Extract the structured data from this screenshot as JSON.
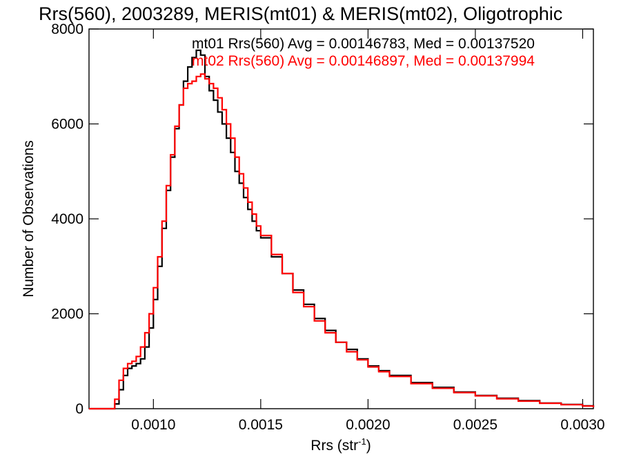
{
  "chart_data": {
    "type": "line",
    "title": "Rrs(560), 2003289, MERIS(mt01) & MERIS(mt02), Oligotrophic",
    "xlabel": "Rrs (str",
    "xlabel_sup": "-1",
    "xlabel_close": ")",
    "ylabel": "Number of Observations",
    "xlim": [
      0.0007,
      0.00305
    ],
    "ylim": [
      0,
      8000
    ],
    "xticks": [
      0.001,
      0.0015,
      0.002,
      0.0025,
      0.003
    ],
    "xtick_labels": [
      "0.0010",
      "0.0015",
      "0.0020",
      "0.0025",
      "0.0030"
    ],
    "yticks": [
      0,
      2000,
      4000,
      6000,
      8000
    ],
    "ytick_labels": [
      "0",
      "2000",
      "4000",
      "6000",
      "8000"
    ],
    "grid": false,
    "colors": {
      "mt01": "#000000",
      "mt02": "#ff0000",
      "axes": "#000000"
    },
    "annotations": [
      {
        "id": "mt01",
        "text": "mt01 Rrs(560) Avg = 0.00146783, Med = 0.00137520",
        "color": "#000000"
      },
      {
        "id": "mt02",
        "text": "mt02 Rrs(560) Avg = 0.00146897, Med = 0.00137994",
        "color": "#ff0000"
      }
    ],
    "series": [
      {
        "id": "mt01",
        "color": "#000000",
        "style": "step",
        "x": [
          0.0007,
          0.0008,
          0.00082,
          0.00084,
          0.00086,
          0.00088,
          0.0009,
          0.00092,
          0.00094,
          0.00096,
          0.00098,
          0.001,
          0.00102,
          0.00104,
          0.00106,
          0.00108,
          0.0011,
          0.00112,
          0.00114,
          0.00116,
          0.00118,
          0.0012,
          0.00122,
          0.00124,
          0.00126,
          0.00128,
          0.0013,
          0.00132,
          0.00134,
          0.00136,
          0.00138,
          0.0014,
          0.00142,
          0.00144,
          0.00146,
          0.00148,
          0.0015,
          0.00155,
          0.0016,
          0.00165,
          0.0017,
          0.00175,
          0.0018,
          0.00185,
          0.0019,
          0.00195,
          0.002,
          0.00205,
          0.0021,
          0.0022,
          0.0023,
          0.0024,
          0.0025,
          0.0026,
          0.0027,
          0.0028,
          0.0029,
          0.003,
          0.00305
        ],
        "y": [
          0,
          0,
          100,
          400,
          700,
          850,
          900,
          950,
          1050,
          1300,
          1700,
          2300,
          3000,
          3800,
          4600,
          5300,
          5900,
          6400,
          6900,
          7200,
          7400,
          7550,
          7450,
          7000,
          6700,
          6500,
          6250,
          6000,
          5700,
          5400,
          5000,
          4750,
          4450,
          4200,
          3950,
          3750,
          3600,
          3200,
          2850,
          2500,
          2200,
          1900,
          1650,
          1400,
          1250,
          1050,
          900,
          800,
          700,
          550,
          450,
          350,
          280,
          220,
          170,
          120,
          90,
          60,
          30
        ]
      },
      {
        "id": "mt02",
        "color": "#ff0000",
        "style": "step",
        "x": [
          0.0007,
          0.0008,
          0.00082,
          0.00084,
          0.00086,
          0.00088,
          0.0009,
          0.00092,
          0.00094,
          0.00096,
          0.00098,
          0.001,
          0.00102,
          0.00104,
          0.00106,
          0.00108,
          0.0011,
          0.00112,
          0.00114,
          0.00116,
          0.00118,
          0.0012,
          0.00122,
          0.00124,
          0.00126,
          0.00128,
          0.0013,
          0.00132,
          0.00134,
          0.00136,
          0.00138,
          0.0014,
          0.00142,
          0.00144,
          0.00146,
          0.00148,
          0.0015,
          0.00155,
          0.0016,
          0.00165,
          0.0017,
          0.00175,
          0.0018,
          0.00185,
          0.0019,
          0.00195,
          0.002,
          0.00205,
          0.0021,
          0.0022,
          0.0023,
          0.0024,
          0.0025,
          0.0026,
          0.0027,
          0.0028,
          0.0029,
          0.003,
          0.00305
        ],
        "y": [
          0,
          0,
          200,
          600,
          850,
          950,
          1000,
          1100,
          1300,
          1600,
          2000,
          2550,
          3200,
          3950,
          4700,
          5350,
          5950,
          6400,
          6750,
          6850,
          6900,
          7000,
          7050,
          6950,
          6850,
          6750,
          6550,
          6300,
          6000,
          5700,
          5300,
          4950,
          4650,
          4350,
          4100,
          3850,
          3650,
          3250,
          2850,
          2450,
          2150,
          1850,
          1600,
          1400,
          1200,
          1030,
          880,
          780,
          680,
          530,
          430,
          340,
          270,
          210,
          160,
          115,
          85,
          55,
          30
        ]
      }
    ]
  }
}
